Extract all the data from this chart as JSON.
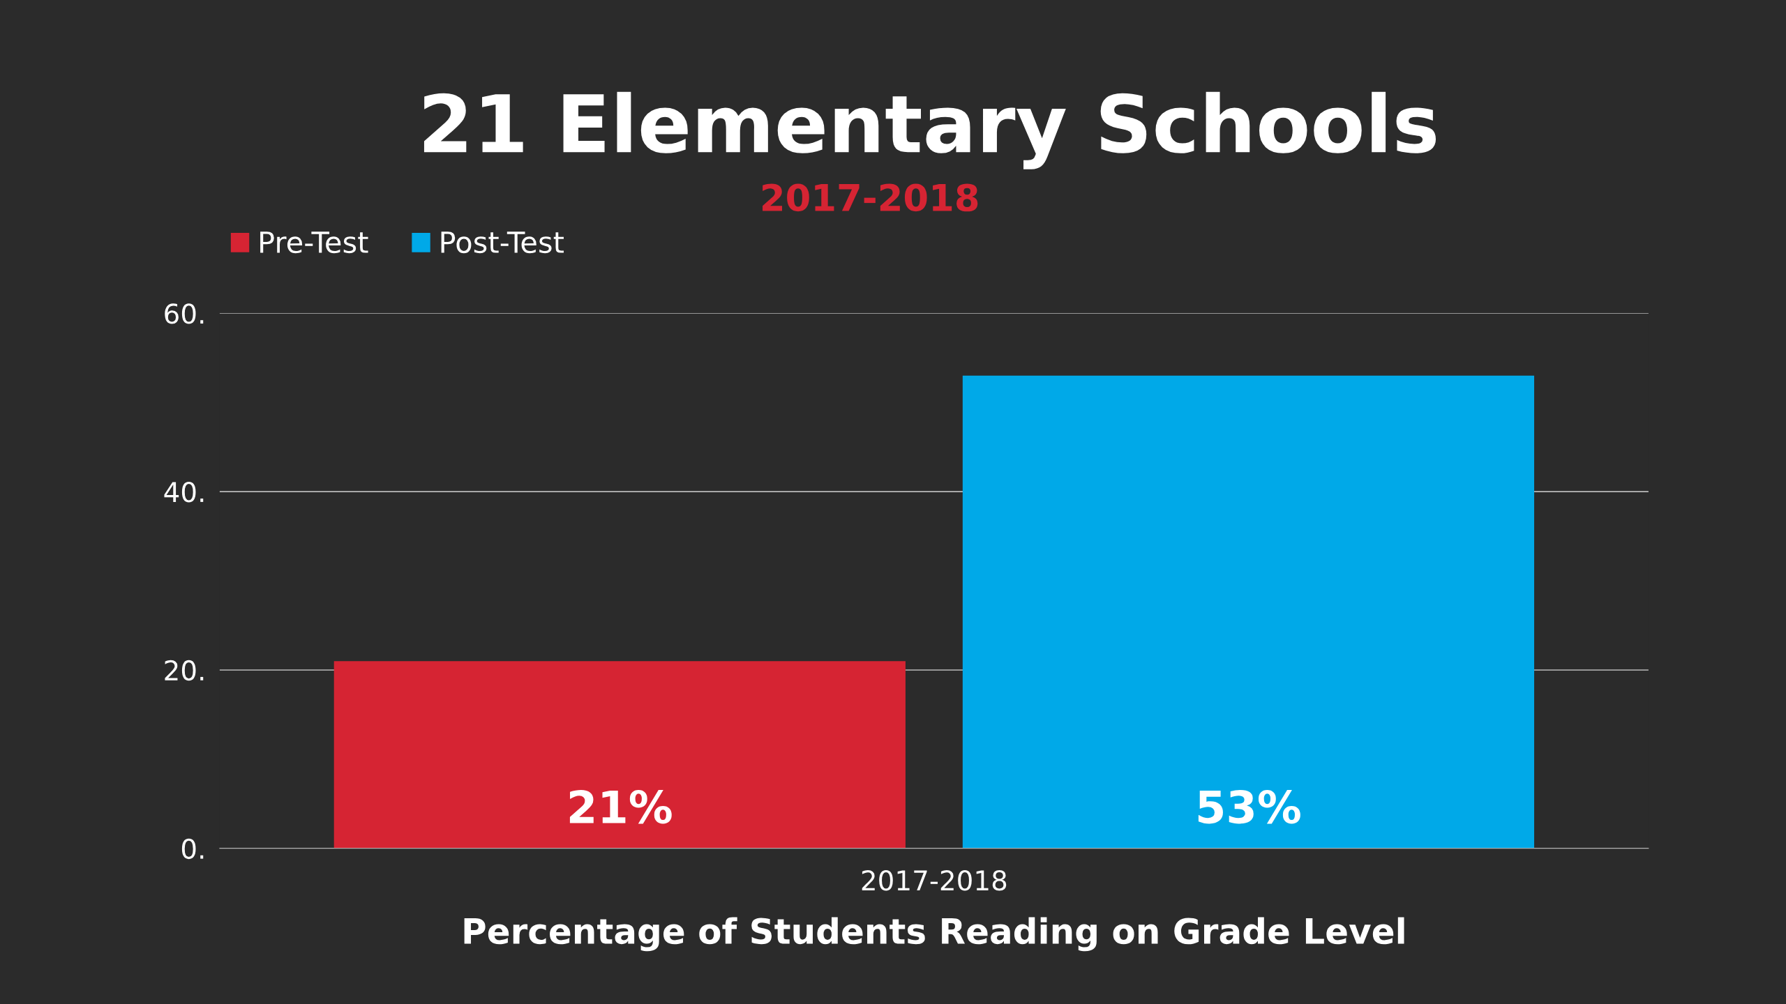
{
  "chart_data": {
    "type": "bar",
    "title": "21 Elementary Schools",
    "subtitle": "2017-2018",
    "xlabel": "Percentage of Students Reading on Grade Level",
    "categories": [
      "2017-2018"
    ],
    "series": [
      {
        "name": "Pre-Test",
        "color": "#d62433",
        "values": [
          21
        ],
        "value_labels": [
          "21%"
        ]
      },
      {
        "name": "Post-Test",
        "color": "#00a9e8",
        "values": [
          53
        ],
        "value_labels": [
          "53%"
        ]
      }
    ],
    "ylim": [
      0,
      60
    ],
    "yticks": [
      {
        "value": 0,
        "label": "0."
      },
      {
        "value": 20,
        "label": "20."
      },
      {
        "value": 40,
        "label": "40."
      },
      {
        "value": 60,
        "label": "60."
      }
    ],
    "grid": "y",
    "legend": "top left"
  }
}
